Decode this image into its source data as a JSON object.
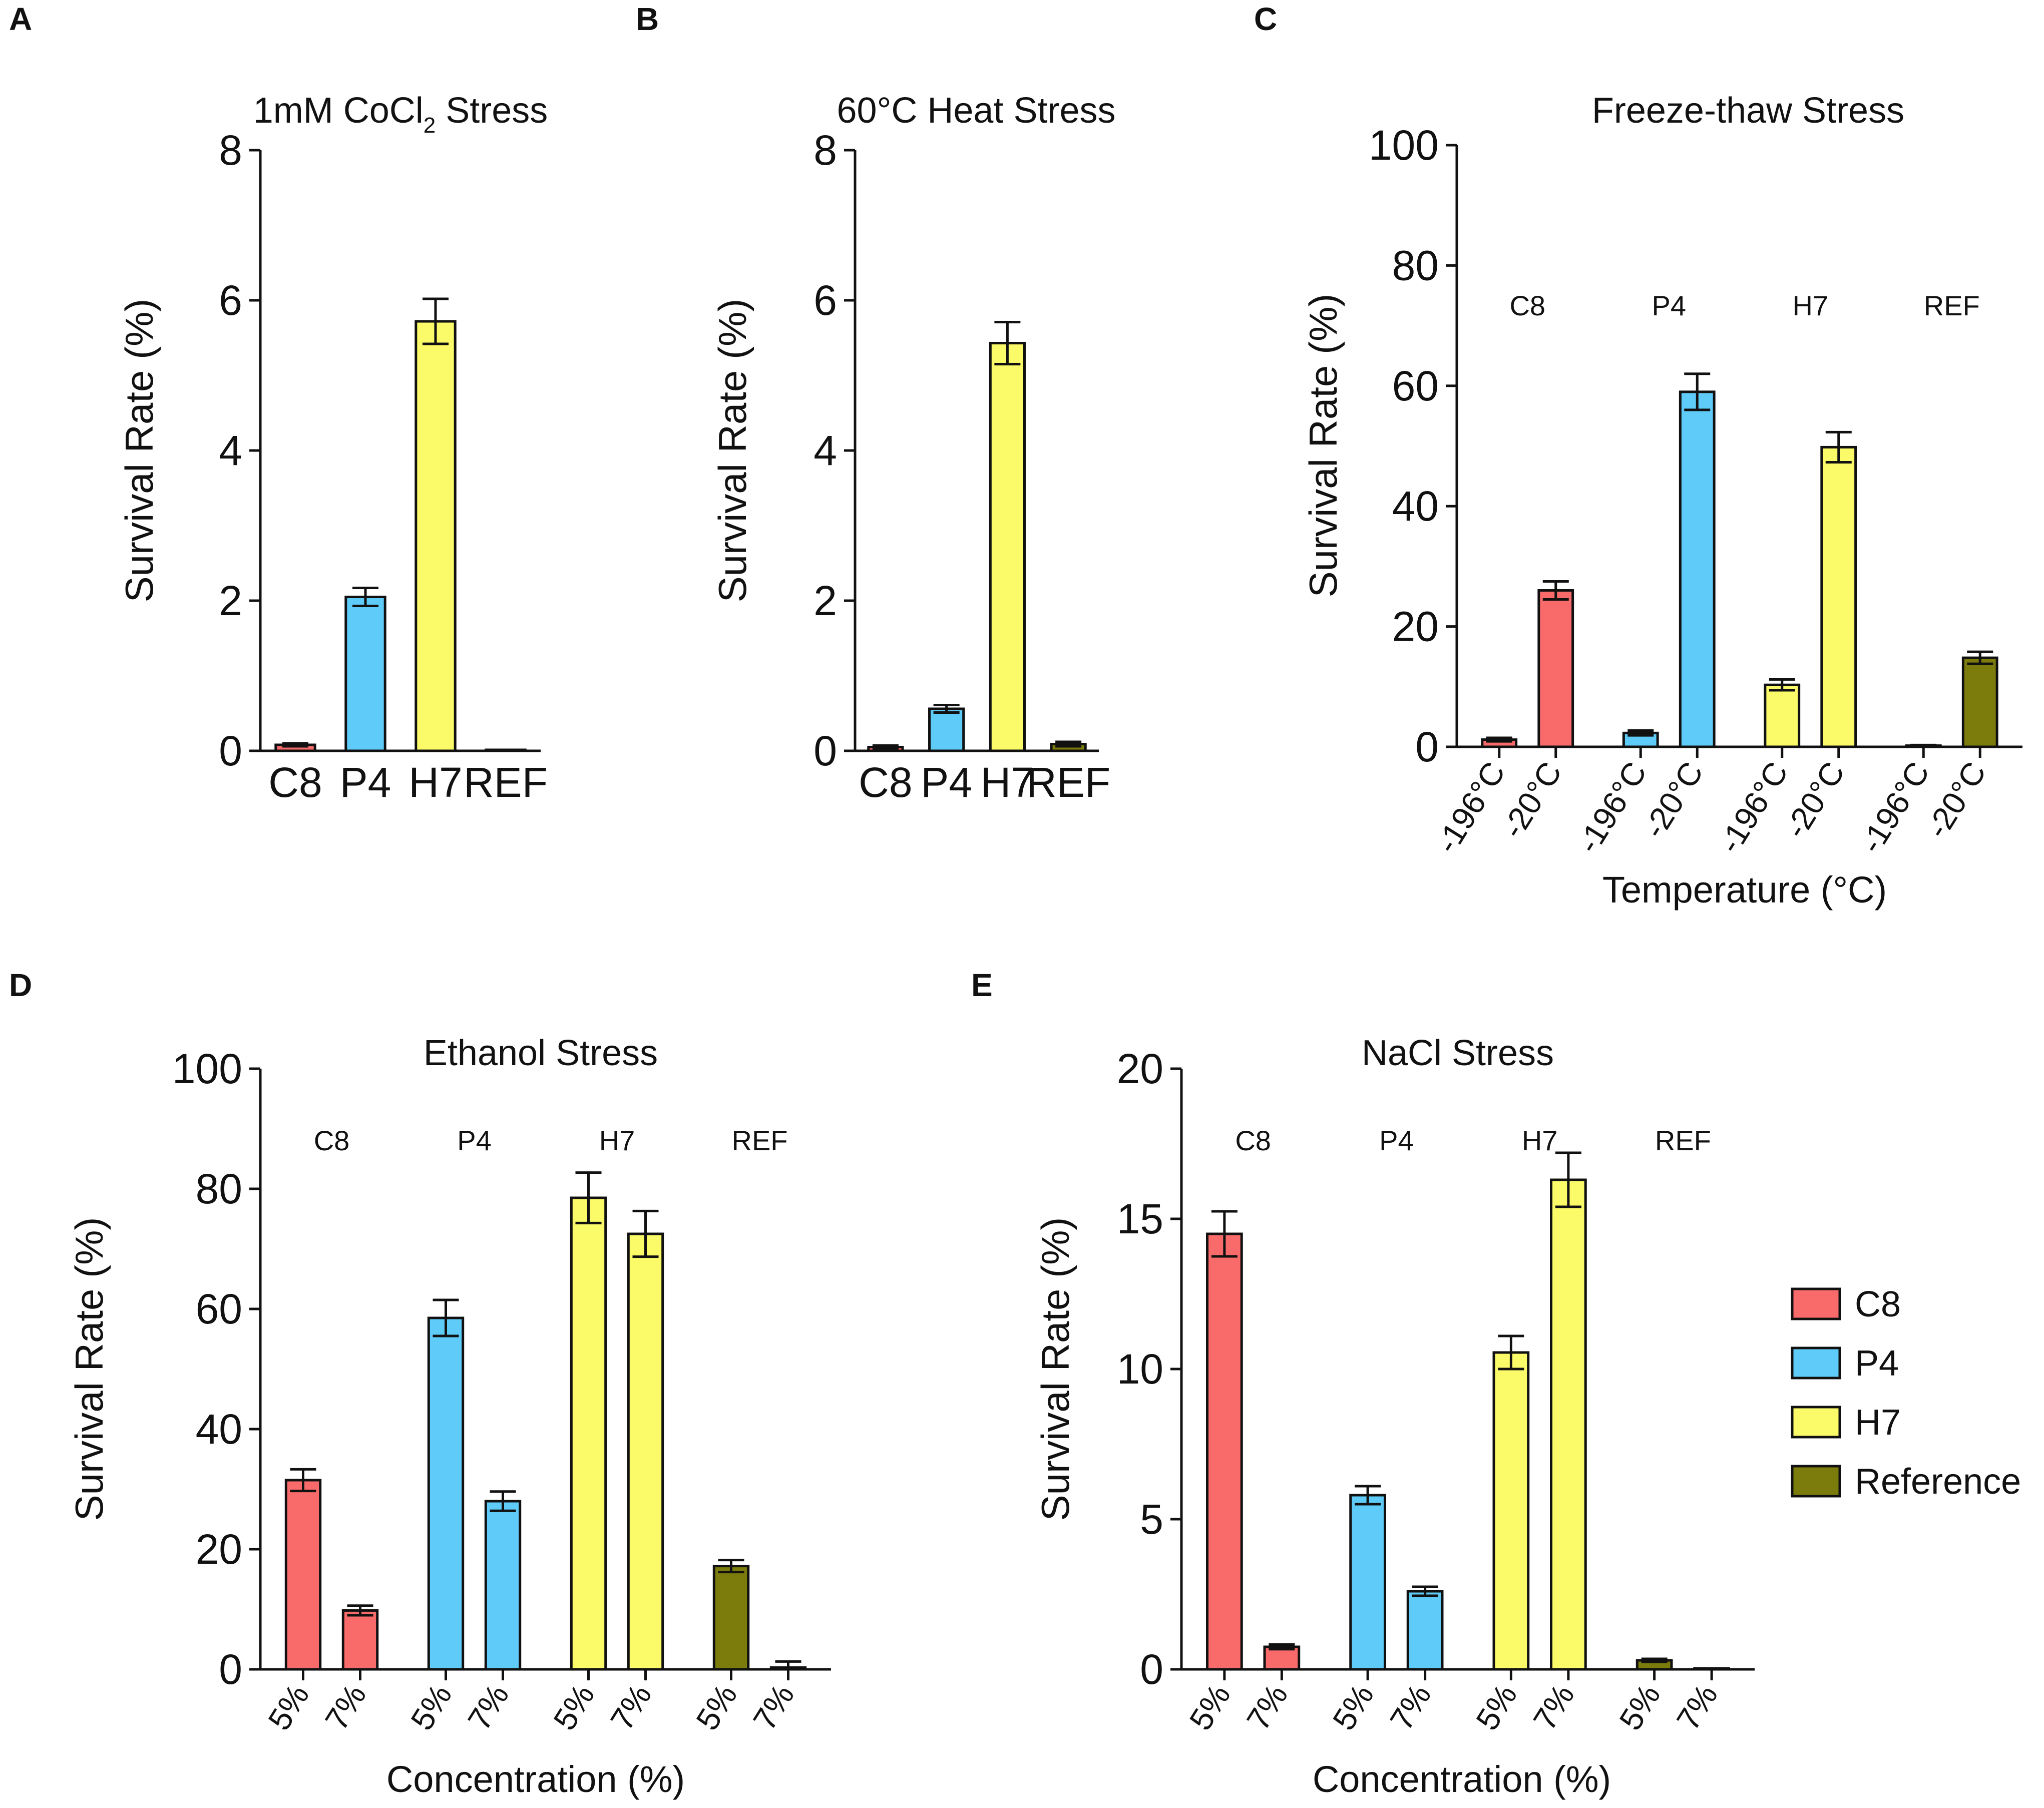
{
  "figure": {
    "colors": {
      "C8": "#f96b6b",
      "P4": "#5ecbf8",
      "H7": "#fbfb6a",
      "Reference": "#7c7c0c",
      "axis": "#111111"
    },
    "legend": [
      {
        "label": "C8",
        "color": "#f96b6b"
      },
      {
        "label": "P4",
        "color": "#5ecbf8"
      },
      {
        "label": "H7",
        "color": "#fbfb6a"
      },
      {
        "label": "Reference",
        "color": "#7c7c0c"
      }
    ]
  },
  "chart_data": [
    {
      "id": "A",
      "panel_letter": "A",
      "type": "bar",
      "title_main": "1mM CoCl",
      "title_sub": "2",
      "title_end": " Stress",
      "ylabel": "Survival Rate (%)",
      "xlabel": "",
      "ylim": [
        0,
        8
      ],
      "yticks": [
        "0",
        "2",
        "4",
        "6",
        "8"
      ],
      "categories": [
        "C8",
        "P4",
        "H7",
        "REF"
      ],
      "values": [
        0.08,
        2.05,
        5.72,
        0.01
      ],
      "errors": [
        0.02,
        0.12,
        0.3,
        0.0
      ],
      "series_keys": [
        "C8",
        "P4",
        "H7",
        "Reference"
      ]
    },
    {
      "id": "B",
      "panel_letter": "B",
      "type": "bar",
      "title_main": "60°C Heat Stress",
      "title_sub": "",
      "title_end": "",
      "ylabel": "Survival Rate (%)",
      "xlabel": "",
      "ylim": [
        0,
        8
      ],
      "yticks": [
        "0",
        "2",
        "4",
        "6",
        "8"
      ],
      "categories": [
        "C8",
        "P4",
        "H7",
        "REF"
      ],
      "values": [
        0.05,
        0.56,
        5.43,
        0.09
      ],
      "errors": [
        0.02,
        0.05,
        0.28,
        0.03
      ],
      "series_keys": [
        "C8",
        "P4",
        "H7",
        "Reference"
      ]
    },
    {
      "id": "C",
      "panel_letter": "C",
      "type": "grouped-bar",
      "title": "Freeze-thaw Stress",
      "ylabel": "Survival Rate (%)",
      "xlabel": "Temperature (°C)",
      "ylim": [
        0,
        100
      ],
      "yticks": [
        "0",
        "20",
        "40",
        "60",
        "80",
        "100"
      ],
      "groups": [
        "C8",
        "P4",
        "H7",
        "REF"
      ],
      "subcategories": [
        "-196°C",
        "-20°C"
      ],
      "series_keys": [
        "C8",
        "P4",
        "H7",
        "Reference"
      ],
      "values": [
        [
          1.2,
          26.0
        ],
        [
          2.3,
          59.0
        ],
        [
          10.3,
          49.8
        ],
        [
          0.2,
          14.8
        ]
      ],
      "errors": [
        [
          0.3,
          1.5
        ],
        [
          0.4,
          3.0
        ],
        [
          0.9,
          2.5
        ],
        [
          0.1,
          1.0
        ]
      ]
    },
    {
      "id": "D",
      "panel_letter": "D",
      "type": "grouped-bar",
      "title": "Ethanol Stress",
      "ylabel": "Survival Rate (%)",
      "xlabel": "Concentration (%)",
      "ylim": [
        0,
        100
      ],
      "yticks": [
        "0",
        "20",
        "40",
        "60",
        "80",
        "100"
      ],
      "groups": [
        "C8",
        "P4",
        "H7",
        "REF"
      ],
      "subcategories": [
        "5%",
        "7%"
      ],
      "series_keys": [
        "C8",
        "P4",
        "H7",
        "Reference"
      ],
      "values": [
        [
          31.5,
          9.8
        ],
        [
          58.5,
          28.0
        ],
        [
          78.5,
          72.5
        ],
        [
          17.2,
          0.3
        ]
      ],
      "errors": [
        [
          1.8,
          0.8
        ],
        [
          3.0,
          1.6
        ],
        [
          4.2,
          3.8
        ],
        [
          1.0,
          1.0
        ]
      ]
    },
    {
      "id": "E",
      "panel_letter": "E",
      "type": "grouped-bar",
      "title": "NaCl Stress",
      "ylabel": "Survival Rate (%)",
      "xlabel": "Concentration (%)",
      "ylim": [
        0,
        20
      ],
      "yticks": [
        "0",
        "5",
        "10",
        "15",
        "20"
      ],
      "groups": [
        "C8",
        "P4",
        "H7",
        "REF"
      ],
      "subcategories": [
        "5%",
        "7%"
      ],
      "series_keys": [
        "C8",
        "P4",
        "H7",
        "Reference"
      ],
      "values": [
        [
          14.5,
          0.75
        ],
        [
          5.8,
          2.6
        ],
        [
          10.55,
          16.3
        ],
        [
          0.3,
          0.0
        ]
      ],
      "errors": [
        [
          0.75,
          0.08
        ],
        [
          0.3,
          0.15
        ],
        [
          0.55,
          0.9
        ],
        [
          0.05,
          0.0
        ]
      ]
    }
  ]
}
